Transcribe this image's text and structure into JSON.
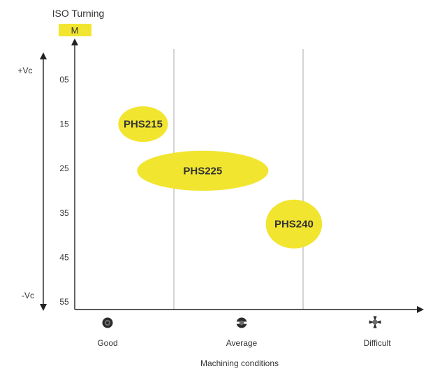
{
  "chart_data": {
    "type": "scatter",
    "title": "ISO Turning",
    "iso_badge": {
      "label": "M",
      "color": "#f2e530"
    },
    "yaxis": {
      "ticks": [
        "05",
        "15",
        "25",
        "35",
        "45",
        "55"
      ],
      "top_label": "+Vc",
      "bottom_label": "-Vc"
    },
    "xaxis": {
      "label": "Machining conditions",
      "categories": [
        "Good",
        "Average",
        "Difficult"
      ],
      "icons": [
        "good-condition-icon",
        "average-condition-icon",
        "difficult-condition-icon"
      ]
    },
    "grades": [
      {
        "name": "PHS215",
        "x_range": [
          0.08,
          0.45
        ],
        "y_range": [
          11,
          19
        ]
      },
      {
        "name": "PHS225",
        "x_range": [
          0.22,
          1.2
        ],
        "y_range": [
          21,
          30
        ]
      },
      {
        "name": "PHS240",
        "x_range": [
          1.18,
          1.6
        ],
        "y_range": [
          32,
          43
        ]
      }
    ],
    "grid": "vertical",
    "ellipse_color": "#f2e530",
    "label_color": "#9b9b9b"
  }
}
